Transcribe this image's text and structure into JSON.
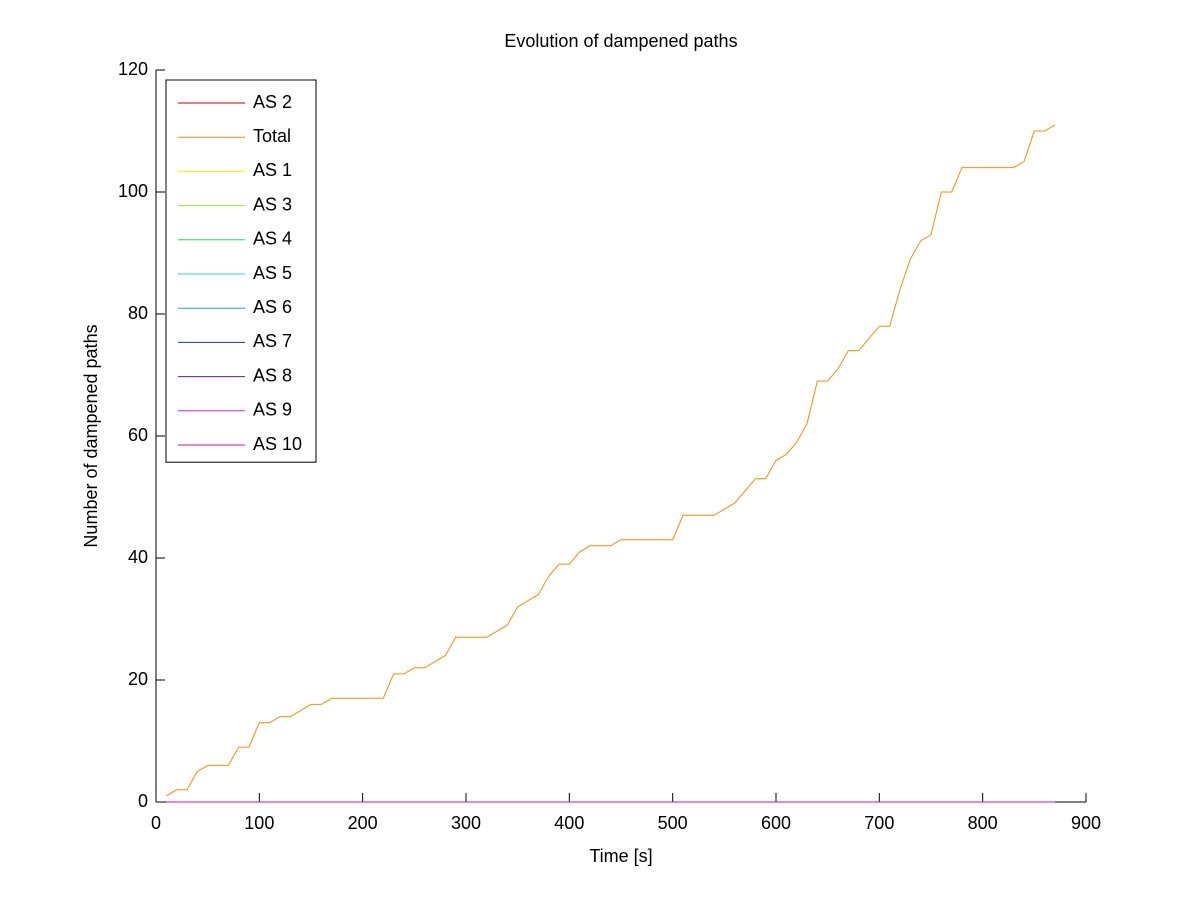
{
  "chart_data": {
    "type": "line",
    "title": "Evolution of dampened paths",
    "xlabel": "Time [s]",
    "ylabel": "Number of dampened paths",
    "x": [
      10,
      20,
      30,
      40,
      50,
      60,
      70,
      80,
      90,
      100,
      110,
      120,
      130,
      140,
      150,
      160,
      170,
      180,
      190,
      200,
      210,
      220,
      230,
      240,
      250,
      260,
      270,
      280,
      290,
      300,
      310,
      320,
      330,
      340,
      350,
      360,
      370,
      380,
      390,
      400,
      410,
      420,
      430,
      440,
      450,
      460,
      470,
      480,
      490,
      500,
      510,
      520,
      530,
      540,
      550,
      560,
      570,
      580,
      590,
      600,
      610,
      620,
      630,
      640,
      650,
      660,
      670,
      680,
      690,
      700,
      710,
      720,
      730,
      740,
      750,
      760,
      770,
      780,
      790,
      800,
      810,
      820,
      830,
      840,
      850,
      860,
      870
    ],
    "series": [
      {
        "name": "AS 2",
        "color": "#cc0000",
        "values": [
          0,
          0,
          0,
          0,
          0,
          0,
          0,
          0,
          0,
          0,
          0,
          0,
          0,
          0,
          0,
          0,
          0,
          0,
          0,
          0,
          0,
          0,
          0,
          0,
          0,
          0,
          0,
          0,
          0,
          0,
          0,
          0,
          0,
          0,
          0,
          0,
          0,
          0,
          0,
          0,
          0,
          0,
          0,
          0,
          0,
          0,
          0,
          0,
          0,
          0,
          0,
          0,
          0,
          0,
          0,
          0,
          0,
          0,
          0,
          0,
          0,
          0,
          0,
          0,
          0,
          0,
          0,
          0,
          0,
          0,
          0,
          0,
          0,
          0,
          0,
          0,
          0,
          0,
          0,
          0,
          0,
          0,
          0,
          0,
          0,
          0,
          0
        ]
      },
      {
        "name": "Total",
        "color": "#ff8c00",
        "values": [
          1,
          2,
          2,
          5,
          6,
          6,
          6,
          9,
          9,
          13,
          13,
          14,
          14,
          15,
          16,
          16,
          17,
          17,
          17,
          17,
          17,
          17,
          21,
          21,
          22,
          22,
          23,
          24,
          27,
          27,
          27,
          27,
          28,
          29,
          32,
          33,
          34,
          37,
          39,
          39,
          41,
          42,
          42,
          42,
          43,
          43,
          43,
          43,
          43,
          43,
          47,
          47,
          47,
          47,
          48,
          49,
          51,
          53,
          53,
          56,
          57,
          59,
          62,
          69,
          69,
          71,
          74,
          74,
          76,
          78,
          78,
          84,
          89,
          92,
          93,
          100,
          100,
          104,
          104,
          104,
          104,
          104,
          104,
          105,
          110,
          110,
          111
        ]
      },
      {
        "name": "AS 1",
        "color": "#ffee00",
        "values": [
          0,
          0,
          0,
          0,
          0,
          0,
          0,
          0,
          0,
          0,
          0,
          0,
          0,
          0,
          0,
          0,
          0,
          0,
          0,
          0,
          0,
          0,
          0,
          0,
          0,
          0,
          0,
          0,
          0,
          0,
          0,
          0,
          0,
          0,
          0,
          0,
          0,
          0,
          0,
          0,
          0,
          0,
          0,
          0,
          0,
          0,
          0,
          0,
          0,
          0,
          0,
          0,
          0,
          0,
          0,
          0,
          0,
          0,
          0,
          0,
          0,
          0,
          0,
          0,
          0,
          0,
          0,
          0,
          0,
          0,
          0,
          0,
          0,
          0,
          0,
          0,
          0,
          0,
          0,
          0,
          0,
          0,
          0,
          0,
          0,
          0,
          0
        ]
      },
      {
        "name": "AS 3",
        "color": "#88ee22",
        "values": [
          0,
          0,
          0,
          0,
          0,
          0,
          0,
          0,
          0,
          0,
          0,
          0,
          0,
          0,
          0,
          0,
          0,
          0,
          0,
          0,
          0,
          0,
          0,
          0,
          0,
          0,
          0,
          0,
          0,
          0,
          0,
          0,
          0,
          0,
          0,
          0,
          0,
          0,
          0,
          0,
          0,
          0,
          0,
          0,
          0,
          0,
          0,
          0,
          0,
          0,
          0,
          0,
          0,
          0,
          0,
          0,
          0,
          0,
          0,
          0,
          0,
          0,
          0,
          0,
          0,
          0,
          0,
          0,
          0,
          0,
          0,
          0,
          0,
          0,
          0,
          0,
          0,
          0,
          0,
          0,
          0,
          0,
          0,
          0,
          0,
          0,
          0
        ]
      },
      {
        "name": "AS 4",
        "color": "#22dd55",
        "values": [
          0,
          0,
          0,
          0,
          0,
          0,
          0,
          0,
          0,
          0,
          0,
          0,
          0,
          0,
          0,
          0,
          0,
          0,
          0,
          0,
          0,
          0,
          0,
          0,
          0,
          0,
          0,
          0,
          0,
          0,
          0,
          0,
          0,
          0,
          0,
          0,
          0,
          0,
          0,
          0,
          0,
          0,
          0,
          0,
          0,
          0,
          0,
          0,
          0,
          0,
          0,
          0,
          0,
          0,
          0,
          0,
          0,
          0,
          0,
          0,
          0,
          0,
          0,
          0,
          0,
          0,
          0,
          0,
          0,
          0,
          0,
          0,
          0,
          0,
          0,
          0,
          0,
          0,
          0,
          0,
          0,
          0,
          0,
          0,
          0,
          0,
          0
        ]
      },
      {
        "name": "AS 5",
        "color": "#22dddd",
        "values": [
          0,
          0,
          0,
          0,
          0,
          0,
          0,
          0,
          0,
          0,
          0,
          0,
          0,
          0,
          0,
          0,
          0,
          0,
          0,
          0,
          0,
          0,
          0,
          0,
          0,
          0,
          0,
          0,
          0,
          0,
          0,
          0,
          0,
          0,
          0,
          0,
          0,
          0,
          0,
          0,
          0,
          0,
          0,
          0,
          0,
          0,
          0,
          0,
          0,
          0,
          0,
          0,
          0,
          0,
          0,
          0,
          0,
          0,
          0,
          0,
          0,
          0,
          0,
          0,
          0,
          0,
          0,
          0,
          0,
          0,
          0,
          0,
          0,
          0,
          0,
          0,
          0,
          0,
          0,
          0,
          0,
          0,
          0,
          0,
          0,
          0,
          0
        ]
      },
      {
        "name": "AS 6",
        "color": "#1e9fd8",
        "values": [
          0,
          0,
          0,
          0,
          0,
          0,
          0,
          0,
          0,
          0,
          0,
          0,
          0,
          0,
          0,
          0,
          0,
          0,
          0,
          0,
          0,
          0,
          0,
          0,
          0,
          0,
          0,
          0,
          0,
          0,
          0,
          0,
          0,
          0,
          0,
          0,
          0,
          0,
          0,
          0,
          0,
          0,
          0,
          0,
          0,
          0,
          0,
          0,
          0,
          0,
          0,
          0,
          0,
          0,
          0,
          0,
          0,
          0,
          0,
          0,
          0,
          0,
          0,
          0,
          0,
          0,
          0,
          0,
          0,
          0,
          0,
          0,
          0,
          0,
          0,
          0,
          0,
          0,
          0,
          0,
          0,
          0,
          0,
          0,
          0,
          0,
          0
        ]
      },
      {
        "name": "AS 7",
        "color": "#1a33bb",
        "values": [
          0,
          0,
          0,
          0,
          0,
          0,
          0,
          0,
          0,
          0,
          0,
          0,
          0,
          0,
          0,
          0,
          0,
          0,
          0,
          0,
          0,
          0,
          0,
          0,
          0,
          0,
          0,
          0,
          0,
          0,
          0,
          0,
          0,
          0,
          0,
          0,
          0,
          0,
          0,
          0,
          0,
          0,
          0,
          0,
          0,
          0,
          0,
          0,
          0,
          0,
          0,
          0,
          0,
          0,
          0,
          0,
          0,
          0,
          0,
          0,
          0,
          0,
          0,
          0,
          0,
          0,
          0,
          0,
          0,
          0,
          0,
          0,
          0,
          0,
          0,
          0,
          0,
          0,
          0,
          0,
          0,
          0,
          0,
          0,
          0,
          0,
          0
        ]
      },
      {
        "name": "AS 8",
        "color": "#6611cc",
        "values": [
          0,
          0,
          0,
          0,
          0,
          0,
          0,
          0,
          0,
          0,
          0,
          0,
          0,
          0,
          0,
          0,
          0,
          0,
          0,
          0,
          0,
          0,
          0,
          0,
          0,
          0,
          0,
          0,
          0,
          0,
          0,
          0,
          0,
          0,
          0,
          0,
          0,
          0,
          0,
          0,
          0,
          0,
          0,
          0,
          0,
          0,
          0,
          0,
          0,
          0,
          0,
          0,
          0,
          0,
          0,
          0,
          0,
          0,
          0,
          0,
          0,
          0,
          0,
          0,
          0,
          0,
          0,
          0,
          0,
          0,
          0,
          0,
          0,
          0,
          0,
          0,
          0,
          0,
          0,
          0,
          0,
          0,
          0,
          0,
          0,
          0,
          0
        ]
      },
      {
        "name": "AS 9",
        "color": "#cc22dd",
        "values": [
          0,
          0,
          0,
          0,
          0,
          0,
          0,
          0,
          0,
          0,
          0,
          0,
          0,
          0,
          0,
          0,
          0,
          0,
          0,
          0,
          0,
          0,
          0,
          0,
          0,
          0,
          0,
          0,
          0,
          0,
          0,
          0,
          0,
          0,
          0,
          0,
          0,
          0,
          0,
          0,
          0,
          0,
          0,
          0,
          0,
          0,
          0,
          0,
          0,
          0,
          0,
          0,
          0,
          0,
          0,
          0,
          0,
          0,
          0,
          0,
          0,
          0,
          0,
          0,
          0,
          0,
          0,
          0,
          0,
          0,
          0,
          0,
          0,
          0,
          0,
          0,
          0,
          0,
          0,
          0,
          0,
          0,
          0,
          0,
          0,
          0,
          0
        ]
      },
      {
        "name": "AS 10",
        "color": "#dd1188",
        "values": [
          0,
          0,
          0,
          0,
          0,
          0,
          0,
          0,
          0,
          0,
          0,
          0,
          0,
          0,
          0,
          0,
          0,
          0,
          0,
          0,
          0,
          0,
          0,
          0,
          0,
          0,
          0,
          0,
          0,
          0,
          0,
          0,
          0,
          0,
          0,
          0,
          0,
          0,
          0,
          0,
          0,
          0,
          0,
          0,
          0,
          0,
          0,
          0,
          0,
          0,
          0,
          0,
          0,
          0,
          0,
          0,
          0,
          0,
          0,
          0,
          0,
          0,
          0,
          0,
          0,
          0,
          0,
          0,
          0,
          0,
          0,
          0,
          0,
          0,
          0,
          0,
          0,
          0,
          0,
          0,
          0,
          0,
          0,
          0,
          0,
          0,
          0
        ]
      }
    ],
    "xlim": [
      0,
      900
    ],
    "xticks": [
      0,
      100,
      200,
      300,
      400,
      500,
      600,
      700,
      800,
      900
    ],
    "ylim": [
      0,
      120
    ],
    "yticks": [
      0,
      20,
      40,
      60,
      80,
      100,
      120
    ],
    "legend": "upper left",
    "grid": false
  }
}
